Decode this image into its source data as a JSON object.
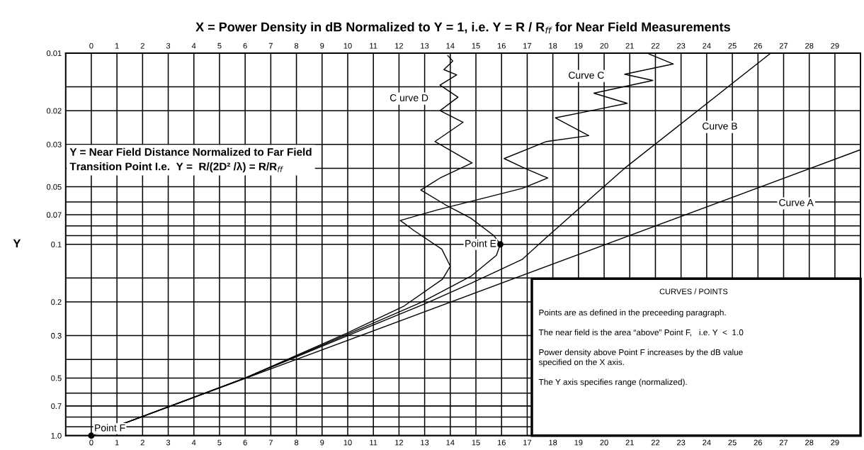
{
  "chart_data": {
    "type": "line",
    "title": "X = Power Density in dB Normalized to Y = 1, i.e. Y = R / R$_{ff}$ for Near Field Measurements",
    "ylabel": "Y",
    "xlim": [
      -1,
      30
    ],
    "xticks": [
      0,
      1,
      2,
      3,
      4,
      5,
      6,
      7,
      8,
      9,
      10,
      11,
      12,
      13,
      14,
      15,
      16,
      17,
      18,
      19,
      20,
      21,
      22,
      23,
      24,
      25,
      26,
      27,
      28,
      29
    ],
    "x2lim": [
      -1,
      30
    ],
    "x2ticks": [
      0,
      1,
      2,
      3,
      4,
      5,
      6,
      7,
      8,
      9,
      10,
      11,
      12,
      13,
      14,
      15,
      16,
      17,
      18,
      19,
      20,
      21,
      22,
      23,
      24,
      25,
      26,
      27,
      28,
      29
    ],
    "log": "y",
    "ylim": [
      1.0,
      0.01
    ],
    "yticks": [
      0.01,
      {
        "value": 0.015,
        "label": null
      },
      0.02,
      0.03,
      {
        "value": 0.04,
        "label": null
      },
      0.05,
      {
        "value": 0.06,
        "label": null
      },
      0.07,
      {
        "value": 0.08,
        "label": null
      },
      {
        "value": 0.09,
        "label": null
      },
      0.1,
      {
        "value": 0.15,
        "label": null
      },
      0.2,
      0.3,
      {
        "value": 0.4,
        "label": null
      },
      0.5,
      {
        "value": 0.6,
        "label": null
      },
      0.7,
      {
        "value": 0.8,
        "label": null
      },
      {
        "value": 0.9,
        "label": null
      },
      {
        "value": 1.0,
        "label": "1.0"
      }
    ],
    "grid": true,
    "legend": false,
    "line_style": "solid",
    "marker": "none",
    "series": [
      {
        "name": "Curve A",
        "color": "#000000",
        "x": [
          0,
          30
        ],
        "values": [
          1.0,
          0.032
        ]
      },
      {
        "name": "Curve B",
        "color": "#000000",
        "x": [
          0,
          6,
          10,
          13,
          14.8,
          16.8,
          17.75,
          20.8,
          26.5
        ],
        "values": [
          1.0,
          0.5,
          0.3,
          0.205,
          0.16,
          0.12,
          0.092,
          0.04,
          0.01
        ]
      },
      {
        "name": "Curve C",
        "color": "#000000",
        "x": [
          0,
          6,
          10,
          12.2,
          13.7,
          14,
          13.67,
          12.6,
          12.05,
          13.5,
          16.8,
          17.8,
          16.9,
          16.1,
          17.75,
          19.4,
          18.1,
          19.5,
          20.9,
          19.6,
          21.9,
          20.8,
          22.7,
          21.75
        ],
        "values": [
          1.0,
          0.5,
          0.29,
          0.21,
          0.152,
          0.13,
          0.106,
          0.085,
          0.075,
          0.066,
          0.051,
          0.045,
          0.04,
          0.0356,
          0.029,
          0.027,
          0.0218,
          0.02,
          0.0183,
          0.0162,
          0.0139,
          0.0129,
          0.0114,
          0.0101
        ]
      },
      {
        "name": "C urve D",
        "color": "#000000",
        "x": [
          0,
          6,
          10,
          12.9,
          14.8,
          15.8,
          15.95,
          15.7,
          14.8,
          13.8,
          12.85,
          13.6,
          14.85,
          13.4,
          14.5,
          13.6,
          14.3,
          13.6,
          14.25,
          13.75,
          14.1,
          13.9
        ],
        "values": [
          1.0,
          0.5,
          0.295,
          0.2,
          0.147,
          0.114,
          0.1,
          0.09,
          0.073,
          0.062,
          0.052,
          0.045,
          0.0375,
          0.029,
          0.023,
          0.02,
          0.017,
          0.0147,
          0.013,
          0.0122,
          0.011,
          0.0103
        ]
      },
      {
        "name": "Point E",
        "type": "scatter",
        "marker": "circle",
        "color": "#000000",
        "x": [
          15.95
        ],
        "values": [
          0.1
        ]
      },
      {
        "name": "Point F",
        "type": "scatter",
        "marker": "circle",
        "color": "#000000",
        "x": [
          0
        ],
        "values": [
          1.0
        ]
      }
    ],
    "annotations": [
      "Y = Near Field Distance Normalized to Far Field\nTransition Point I.e.  Y =  R/(2D² /λ) = R/R$_{ff}$",
      "CURVES / POINTS",
      "Points are as defined in the preceeding paragraph.\n\nThe near field is the area “above” Point F,   i.e. Y  <  1.0\n\nPower density above Point F increases by the dB value\nspecified on the X axis.\n\nThe Y axis specifies range (normalized)."
    ]
  }
}
